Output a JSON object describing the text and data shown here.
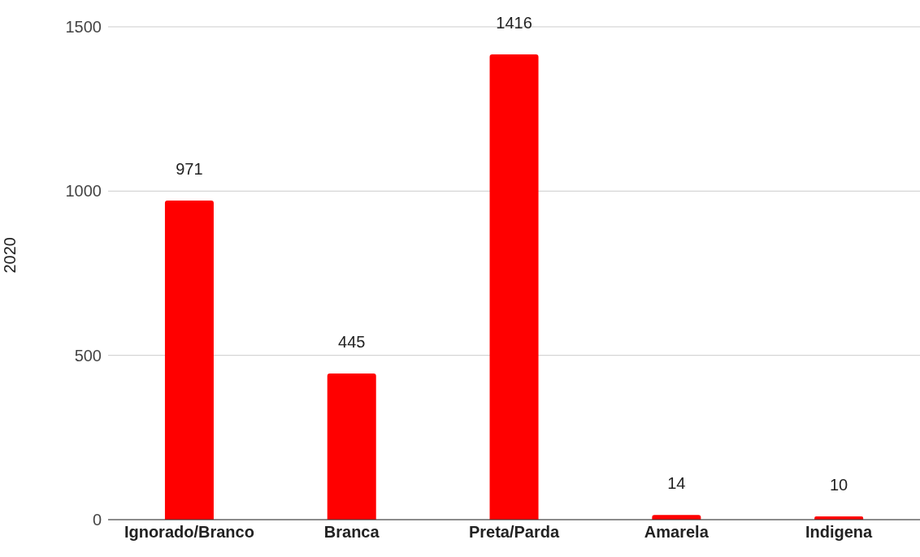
{
  "chart_data": {
    "type": "bar",
    "ylabel": "2020",
    "categories": [
      "Ignorado/Branco",
      "Branca",
      "Preta/Parda",
      "Amarela",
      "Indigena"
    ],
    "values": [
      971,
      445,
      1416,
      14,
      10
    ],
    "color": "#ff0000",
    "ylim": [
      0,
      1500
    ],
    "yticks": [
      0,
      500,
      1000,
      1500
    ],
    "grid": "y",
    "data_labels": true
  }
}
